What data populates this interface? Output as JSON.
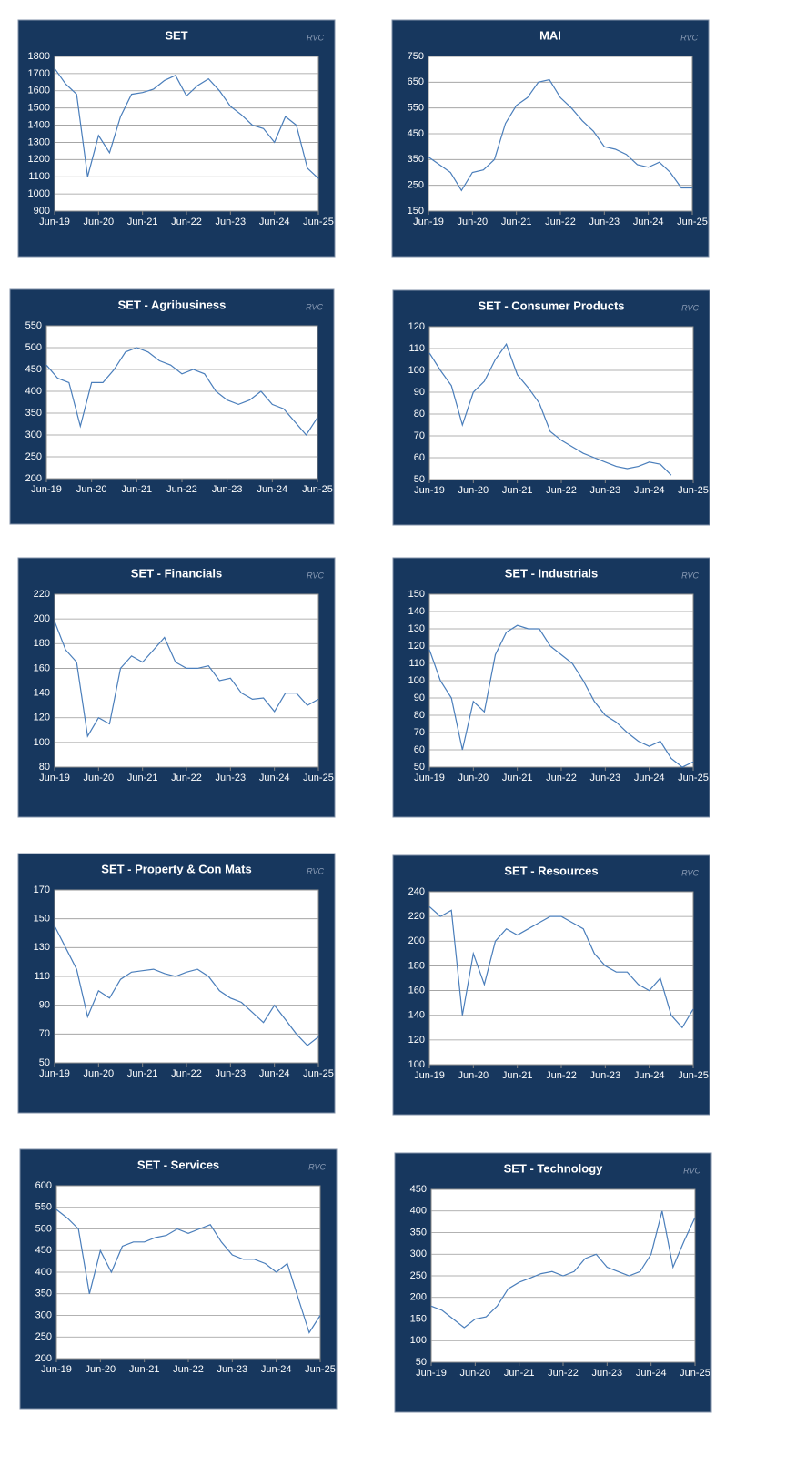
{
  "chart_data": [
    {
      "type": "line",
      "title": "SET",
      "watermark": "RVC",
      "color": "#4a7ebb",
      "grid": true,
      "x": [
        "Jun-19",
        "Sep-19",
        "Dec-19",
        "Mar-20",
        "Jun-20",
        "Sep-20",
        "Dec-20",
        "Mar-21",
        "Jun-21",
        "Sep-21",
        "Dec-21",
        "Mar-22",
        "Jun-22",
        "Sep-22",
        "Dec-22",
        "Mar-23",
        "Jun-23",
        "Sep-23",
        "Dec-23",
        "Mar-24",
        "Jun-24",
        "Sep-24",
        "Dec-24",
        "Mar-25",
        "Jun-25"
      ],
      "values": [
        1730,
        1640,
        1580,
        1100,
        1340,
        1240,
        1450,
        1580,
        1590,
        1610,
        1660,
        1690,
        1570,
        1630,
        1670,
        1600,
        1510,
        1460,
        1400,
        1380,
        1300,
        1450,
        1400,
        1150,
        1090
      ],
      "ylim": [
        900,
        1800
      ],
      "yticks": [
        900,
        1000,
        1100,
        1200,
        1300,
        1400,
        1500,
        1600,
        1700,
        1800
      ],
      "xticks": [
        "Jun-19",
        "Jun-20",
        "Jun-21",
        "Jun-22",
        "Jun-23",
        "Jun-24",
        "Jun-25"
      ]
    },
    {
      "type": "line",
      "title": "MAI",
      "watermark": "RVC",
      "color": "#4a7ebb",
      "grid": true,
      "x": [
        "Jun-19",
        "Sep-19",
        "Dec-19",
        "Mar-20",
        "Jun-20",
        "Sep-20",
        "Dec-20",
        "Mar-21",
        "Jun-21",
        "Sep-21",
        "Dec-21",
        "Mar-22",
        "Jun-22",
        "Sep-22",
        "Dec-22",
        "Mar-23",
        "Jun-23",
        "Sep-23",
        "Dec-23",
        "Mar-24",
        "Jun-24",
        "Sep-24",
        "Dec-24",
        "Mar-25",
        "Jun-25"
      ],
      "values": [
        360,
        330,
        300,
        230,
        300,
        310,
        350,
        490,
        560,
        590,
        650,
        660,
        590,
        550,
        500,
        460,
        400,
        390,
        370,
        330,
        320,
        340,
        300,
        240,
        240
      ],
      "ylim": [
        150,
        750
      ],
      "yticks": [
        150,
        250,
        350,
        450,
        550,
        650,
        750
      ],
      "xticks": [
        "Jun-19",
        "Jun-20",
        "Jun-21",
        "Jun-22",
        "Jun-23",
        "Jun-24",
        "Jun-25"
      ]
    },
    {
      "type": "line",
      "title": "SET - Agribusiness",
      "watermark": "RVC",
      "color": "#4a7ebb",
      "grid": true,
      "x": [
        "Jun-19",
        "Sep-19",
        "Dec-19",
        "Mar-20",
        "Jun-20",
        "Sep-20",
        "Dec-20",
        "Mar-21",
        "Jun-21",
        "Sep-21",
        "Dec-21",
        "Mar-22",
        "Jun-22",
        "Sep-22",
        "Dec-22",
        "Mar-23",
        "Jun-23",
        "Sep-23",
        "Dec-23",
        "Mar-24",
        "Jun-24",
        "Sep-24",
        "Dec-24",
        "Mar-25",
        "Jun-25"
      ],
      "values": [
        460,
        430,
        420,
        320,
        420,
        420,
        450,
        490,
        500,
        490,
        470,
        460,
        440,
        450,
        440,
        400,
        380,
        370,
        380,
        400,
        370,
        360,
        330,
        300,
        340
      ],
      "ylim": [
        200,
        550
      ],
      "yticks": [
        200,
        250,
        300,
        350,
        400,
        450,
        500,
        550
      ],
      "xticks": [
        "Jun-19",
        "Jun-20",
        "Jun-21",
        "Jun-22",
        "Jun-23",
        "Jun-24",
        "Jun-25"
      ]
    },
    {
      "type": "line",
      "title": "SET - Consumer Products",
      "watermark": "RVC",
      "color": "#4a7ebb",
      "grid": true,
      "x": [
        "Jun-19",
        "Sep-19",
        "Dec-19",
        "Mar-20",
        "Jun-20",
        "Sep-20",
        "Dec-20",
        "Mar-21",
        "Jun-21",
        "Sep-21",
        "Dec-21",
        "Mar-22",
        "Jun-22",
        "Sep-22",
        "Dec-22",
        "Mar-23",
        "Jun-23",
        "Sep-23",
        "Dec-23",
        "Mar-24",
        "Jun-24",
        "Sep-24",
        "Dec-24",
        "Mar-25",
        "Jun-25"
      ],
      "values": [
        108,
        100,
        93,
        75,
        90,
        95,
        105,
        112,
        98,
        92,
        85,
        72,
        68,
        65,
        62,
        60,
        58,
        56,
        55,
        56,
        58,
        57,
        52,
        null,
        null
      ],
      "ylim": [
        50,
        120
      ],
      "yticks": [
        50,
        60,
        70,
        80,
        90,
        100,
        110,
        120
      ],
      "xticks": [
        "Jun-19",
        "Jun-20",
        "Jun-21",
        "Jun-22",
        "Jun-23",
        "Jun-24",
        "Jun-25"
      ]
    },
    {
      "type": "line",
      "title": "SET - Financials",
      "watermark": "RVC",
      "color": "#4a7ebb",
      "grid": true,
      "x": [
        "Jun-19",
        "Sep-19",
        "Dec-19",
        "Mar-20",
        "Jun-20",
        "Sep-20",
        "Dec-20",
        "Mar-21",
        "Jun-21",
        "Sep-21",
        "Dec-21",
        "Mar-22",
        "Jun-22",
        "Sep-22",
        "Dec-22",
        "Mar-23",
        "Jun-23",
        "Sep-23",
        "Dec-23",
        "Mar-24",
        "Jun-24",
        "Sep-24",
        "Dec-24",
        "Mar-25",
        "Jun-25"
      ],
      "values": [
        198,
        175,
        165,
        105,
        120,
        115,
        160,
        170,
        165,
        175,
        185,
        165,
        160,
        160,
        162,
        150,
        152,
        140,
        135,
        136,
        125,
        140,
        140,
        130,
        135
      ],
      "ylim": [
        80,
        220
      ],
      "yticks": [
        80,
        100,
        120,
        140,
        160,
        180,
        200,
        220
      ],
      "xticks": [
        "Jun-19",
        "Jun-20",
        "Jun-21",
        "Jun-22",
        "Jun-23",
        "Jun-24",
        "Jun-25"
      ]
    },
    {
      "type": "line",
      "title": "SET - Industrials",
      "watermark": "RVC",
      "color": "#4a7ebb",
      "grid": true,
      "x": [
        "Jun-19",
        "Sep-19",
        "Dec-19",
        "Mar-20",
        "Jun-20",
        "Sep-20",
        "Dec-20",
        "Mar-21",
        "Jun-21",
        "Sep-21",
        "Dec-21",
        "Mar-22",
        "Jun-22",
        "Sep-22",
        "Dec-22",
        "Mar-23",
        "Jun-23",
        "Sep-23",
        "Dec-23",
        "Mar-24",
        "Jun-24",
        "Sep-24",
        "Dec-24",
        "Mar-25",
        "Jun-25"
      ],
      "values": [
        118,
        100,
        90,
        60,
        88,
        82,
        115,
        128,
        132,
        130,
        130,
        120,
        115,
        110,
        100,
        88,
        80,
        76,
        70,
        65,
        62,
        65,
        55,
        50,
        53
      ],
      "ylim": [
        50,
        150
      ],
      "yticks": [
        50,
        60,
        70,
        80,
        90,
        100,
        110,
        120,
        130,
        140,
        150
      ],
      "xticks": [
        "Jun-19",
        "Jun-20",
        "Jun-21",
        "Jun-22",
        "Jun-23",
        "Jun-24",
        "Jun-25"
      ]
    },
    {
      "type": "line",
      "title": "SET - Property & Con Mats",
      "watermark": "RVC",
      "color": "#4a7ebb",
      "grid": true,
      "x": [
        "Jun-19",
        "Sep-19",
        "Dec-19",
        "Mar-20",
        "Jun-20",
        "Sep-20",
        "Dec-20",
        "Mar-21",
        "Jun-21",
        "Sep-21",
        "Dec-21",
        "Mar-22",
        "Jun-22",
        "Sep-22",
        "Dec-22",
        "Mar-23",
        "Jun-23",
        "Sep-23",
        "Dec-23",
        "Mar-24",
        "Jun-24",
        "Sep-24",
        "Dec-24",
        "Mar-25",
        "Jun-25"
      ],
      "values": [
        145,
        130,
        115,
        82,
        100,
        95,
        108,
        113,
        114,
        115,
        112,
        110,
        113,
        115,
        110,
        100,
        95,
        92,
        85,
        78,
        90,
        80,
        70,
        62,
        68
      ],
      "ylim": [
        50,
        170
      ],
      "yticks": [
        50,
        70,
        90,
        110,
        130,
        150,
        170
      ],
      "xticks": [
        "Jun-19",
        "Jun-20",
        "Jun-21",
        "Jun-22",
        "Jun-23",
        "Jun-24",
        "Jun-25"
      ]
    },
    {
      "type": "line",
      "title": "SET - Resources",
      "watermark": "RVC",
      "color": "#4a7ebb",
      "grid": true,
      "x": [
        "Jun-19",
        "Sep-19",
        "Dec-19",
        "Mar-20",
        "Jun-20",
        "Sep-20",
        "Dec-20",
        "Mar-21",
        "Jun-21",
        "Sep-21",
        "Dec-21",
        "Mar-22",
        "Jun-22",
        "Sep-22",
        "Dec-22",
        "Mar-23",
        "Jun-23",
        "Sep-23",
        "Dec-23",
        "Mar-24",
        "Jun-24",
        "Sep-24",
        "Dec-24",
        "Mar-25",
        "Jun-25"
      ],
      "values": [
        228,
        220,
        225,
        140,
        190,
        165,
        200,
        210,
        205,
        210,
        215,
        220,
        220,
        215,
        210,
        190,
        180,
        175,
        175,
        165,
        160,
        170,
        140,
        130,
        145
      ],
      "ylim": [
        100,
        240
      ],
      "yticks": [
        100,
        120,
        140,
        160,
        180,
        200,
        220,
        240
      ],
      "xticks": [
        "Jun-19",
        "Jun-20",
        "Jun-21",
        "Jun-22",
        "Jun-23",
        "Jun-24",
        "Jun-25"
      ]
    },
    {
      "type": "line",
      "title": "SET - Services",
      "watermark": "RVC",
      "color": "#4a7ebb",
      "grid": true,
      "x": [
        "Jun-19",
        "Sep-19",
        "Dec-19",
        "Mar-20",
        "Jun-20",
        "Sep-20",
        "Dec-20",
        "Mar-21",
        "Jun-21",
        "Sep-21",
        "Dec-21",
        "Mar-22",
        "Jun-22",
        "Sep-22",
        "Dec-22",
        "Mar-23",
        "Jun-23",
        "Sep-23",
        "Dec-23",
        "Mar-24",
        "Jun-24",
        "Sep-24",
        "Dec-24",
        "Mar-25",
        "Jun-25"
      ],
      "values": [
        545,
        525,
        500,
        350,
        450,
        400,
        460,
        470,
        470,
        480,
        485,
        500,
        490,
        500,
        510,
        470,
        440,
        430,
        430,
        420,
        400,
        420,
        340,
        260,
        300
      ],
      "ylim": [
        200,
        600
      ],
      "yticks": [
        200,
        250,
        300,
        350,
        400,
        450,
        500,
        550,
        600
      ],
      "xticks": [
        "Jun-19",
        "Jun-20",
        "Jun-21",
        "Jun-22",
        "Jun-23",
        "Jun-24",
        "Jun-25"
      ]
    },
    {
      "type": "line",
      "title": "SET - Technology",
      "watermark": "RVC",
      "color": "#4a7ebb",
      "grid": true,
      "x": [
        "Jun-19",
        "Sep-19",
        "Dec-19",
        "Mar-20",
        "Jun-20",
        "Sep-20",
        "Dec-20",
        "Mar-21",
        "Jun-21",
        "Sep-21",
        "Dec-21",
        "Mar-22",
        "Jun-22",
        "Sep-22",
        "Dec-22",
        "Mar-23",
        "Jun-23",
        "Sep-23",
        "Dec-23",
        "Mar-24",
        "Jun-24",
        "Sep-24",
        "Dec-24",
        "Mar-25",
        "Jun-25"
      ],
      "values": [
        180,
        170,
        150,
        130,
        150,
        155,
        180,
        220,
        235,
        245,
        255,
        260,
        250,
        260,
        290,
        300,
        270,
        260,
        250,
        260,
        300,
        400,
        270,
        330,
        385
      ],
      "ylim": [
        50,
        450
      ],
      "yticks": [
        50,
        100,
        150,
        200,
        250,
        300,
        350,
        400,
        450
      ],
      "xticks": [
        "Jun-19",
        "Jun-20",
        "Jun-21",
        "Jun-22",
        "Jun-23",
        "Jun-24",
        "Jun-25"
      ]
    }
  ]
}
